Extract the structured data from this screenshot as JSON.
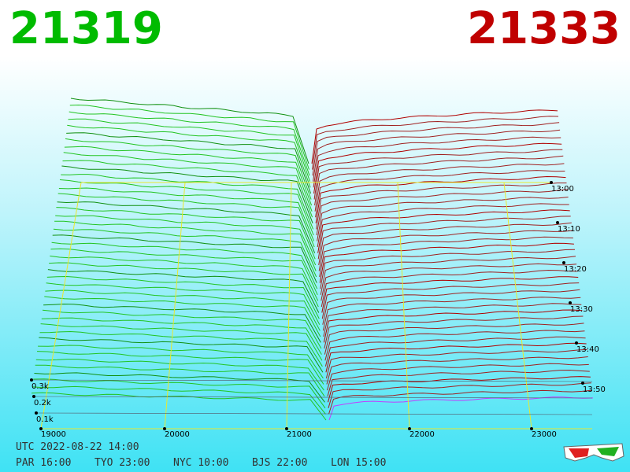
{
  "header": {
    "bid": "21319",
    "ask": "21333"
  },
  "price_axis": {
    "labels": [
      19000,
      20000,
      21000,
      22000,
      23000
    ]
  },
  "time_axis": {
    "labels": [
      "13:00",
      "13:10",
      "13:20",
      "13:30",
      "13:40",
      "13:50"
    ]
  },
  "depth_axis": {
    "labels": [
      "0.3k",
      "0.2k",
      "0.1k"
    ]
  },
  "footer": {
    "utc": "UTC 2022-08-22 14:00",
    "cities": [
      "PAR 16:00",
      "TYO 23:00",
      "NYC 10:00",
      "BJS 22:00",
      "LON 15:00"
    ]
  }
}
